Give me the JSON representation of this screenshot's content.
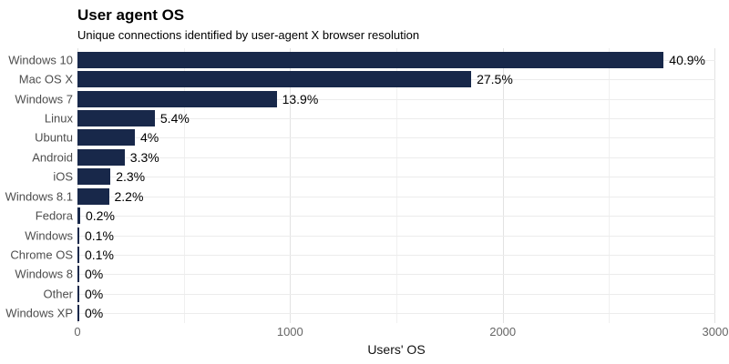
{
  "header": {
    "title": "User agent OS",
    "subtitle": "Unique connections identified by user-agent X browser resolution"
  },
  "chart_data": {
    "type": "bar",
    "orientation": "horizontal",
    "title": "User agent OS",
    "subtitle": "Unique connections identified by user-agent X browser resolution",
    "xlabel": "Users' OS",
    "ylabel": "",
    "categories": [
      "Windows 10",
      "Mac OS X",
      "Windows 7",
      "Linux",
      "Ubuntu",
      "Android",
      "iOS",
      "Windows 8.1",
      "Fedora",
      "Windows",
      "Chrome OS",
      "Windows 8",
      "Other",
      "Windows XP"
    ],
    "values": [
      2757,
      1852,
      937,
      364,
      270,
      222,
      155,
      148,
      13,
      7,
      7,
      2,
      2,
      2
    ],
    "percent_labels": [
      "40.9%",
      "27.5%",
      "13.9%",
      "5.4%",
      "4%",
      "3.3%",
      "2.3%",
      "2.2%",
      "0.2%",
      "0.1%",
      "0.1%",
      "0%",
      "0%",
      "0%"
    ],
    "xlim": [
      0,
      3000
    ],
    "x_ticks": [
      0,
      1000,
      2000,
      3000
    ],
    "x_minor_gridlines": [
      500,
      1500,
      2500
    ],
    "grid": true,
    "legend_position": "none",
    "colors": {
      "bar": "#18284a",
      "major_grid": "#e2e2e2",
      "minor_grid": "#f0f0f0",
      "row_grid": "#ececec",
      "category_label": "#4d4d4d",
      "tick_label": "#666666",
      "value_label": "#000000",
      "background": "#ffffff"
    }
  }
}
